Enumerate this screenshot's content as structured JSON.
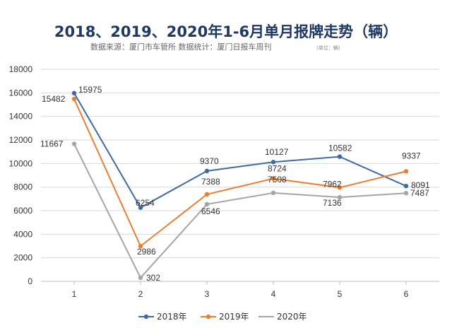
{
  "chart_data": {
    "type": "line",
    "title": "2018、2019、2020年1-6月单月报牌走势（辆）",
    "subtitle": "数据来源：厦门市车管所  数据统计：厦门日报车周刊",
    "subtitle_note": "(单位：辆)",
    "xlabel": "",
    "ylabel": "",
    "categories": [
      "1",
      "2",
      "3",
      "4",
      "5",
      "6"
    ],
    "ylim": [
      0,
      18000
    ],
    "yticks": [
      "0",
      "2000",
      "4000",
      "6000",
      "8000",
      "10000",
      "12000",
      "14000",
      "16000",
      "18000"
    ],
    "grid": "horizontal",
    "legend_position": "bottom",
    "series": [
      {
        "name": "2018年",
        "color": "#3e6aa6",
        "values": [
          15975,
          6254,
          9370,
          10127,
          10582,
          8091
        ]
      },
      {
        "name": "2019年",
        "color": "#ed7d31",
        "values": [
          15482,
          2986,
          7388,
          8724,
          7962,
          9337
        ]
      },
      {
        "name": "2020年",
        "color": "#a5a5a5",
        "values": [
          11667,
          302,
          6546,
          7508,
          7136,
          7487
        ]
      }
    ]
  }
}
